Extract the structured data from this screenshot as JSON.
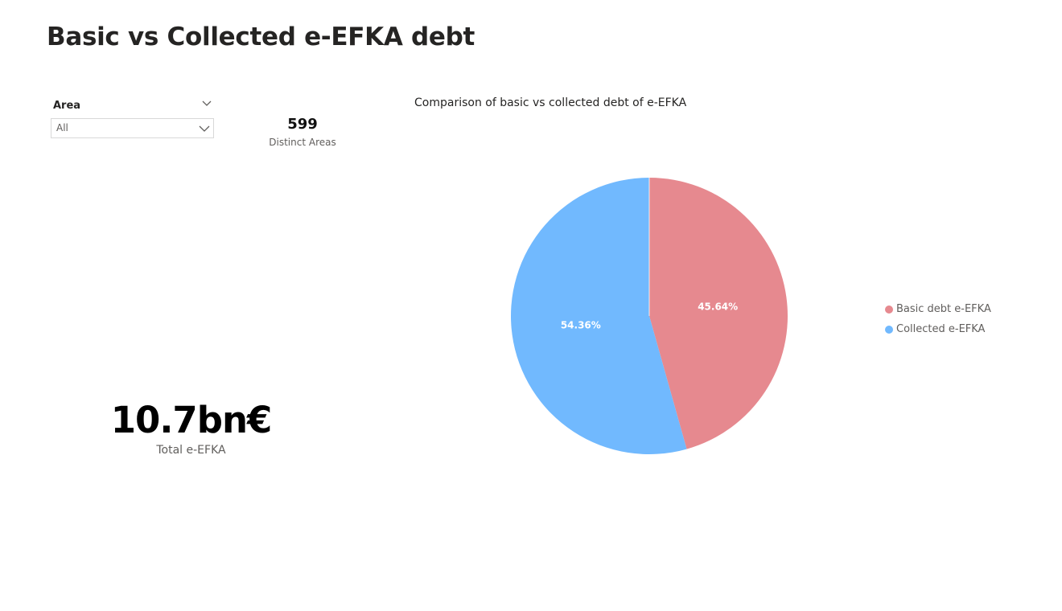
{
  "page": {
    "title": "Basic vs Collected e-EFKA debt"
  },
  "slicer": {
    "label": "Area",
    "value": "All",
    "icon": "chevron-down-icon"
  },
  "cards": {
    "distinct_areas": {
      "value": "599",
      "label": "Distinct Areas"
    },
    "total": {
      "value": "10.7bn€",
      "label": "Total e-EFKA"
    }
  },
  "chart_data": {
    "type": "pie",
    "title": "Comparison of basic vs collected debt of e-EFKA",
    "slices": [
      {
        "name": "Basic debt e-EFKA",
        "value": 45.64,
        "label": "45.64%",
        "color": "#E6898F"
      },
      {
        "name": "Collected e-EFKA",
        "value": 54.36,
        "label": "54.36%",
        "color": "#71B9FE"
      }
    ],
    "legend": {
      "position": "right",
      "items": [
        "Basic debt e-EFKA",
        "Collected e-EFKA"
      ]
    }
  }
}
